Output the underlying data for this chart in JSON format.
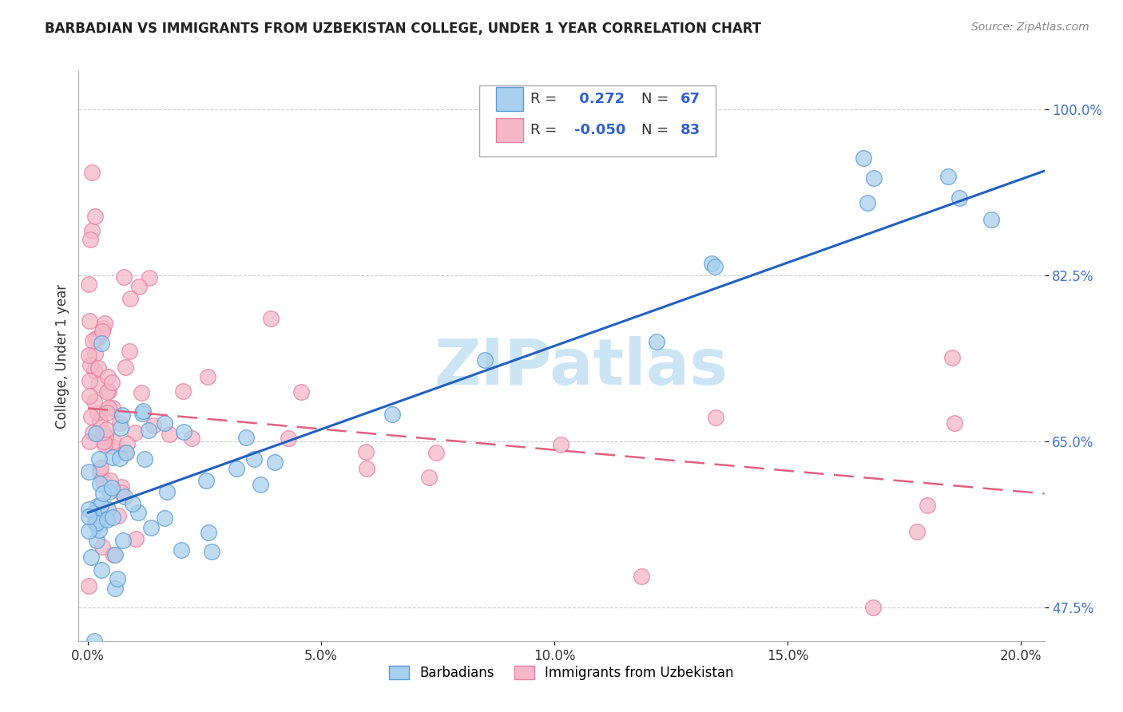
{
  "title": "BARBADIAN VS IMMIGRANTS FROM UZBEKISTAN COLLEGE, UNDER 1 YEAR CORRELATION CHART",
  "source": "Source: ZipAtlas.com",
  "ylabel": "College, Under 1 year",
  "xlabel_ticks": [
    "0.0%",
    "5.0%",
    "10.0%",
    "15.0%",
    "20.0%"
  ],
  "xlabel_vals": [
    0.0,
    0.05,
    0.1,
    0.15,
    0.2
  ],
  "ylabel_ticks": [
    "47.5%",
    "65.0%",
    "82.5%",
    "100.0%"
  ],
  "ylabel_vals": [
    0.475,
    0.65,
    0.825,
    1.0
  ],
  "xlim": [
    -0.002,
    0.205
  ],
  "ylim": [
    0.44,
    1.04
  ],
  "blue_color": "#a8d0ee",
  "pink_color": "#f5b8c8",
  "blue_edge_color": "#5b9bd5",
  "pink_edge_color": "#e87fa0",
  "blue_line_color": "#2060c0",
  "pink_line_color": "#e06080",
  "watermark": "ZIPatlas",
  "blue_line_x0": 0.0,
  "blue_line_y0": 0.575,
  "blue_line_x1": 0.205,
  "blue_line_y1": 0.935,
  "pink_line_x0": 0.0,
  "pink_line_y0": 0.685,
  "pink_line_x1": 0.205,
  "pink_line_y1": 0.595
}
